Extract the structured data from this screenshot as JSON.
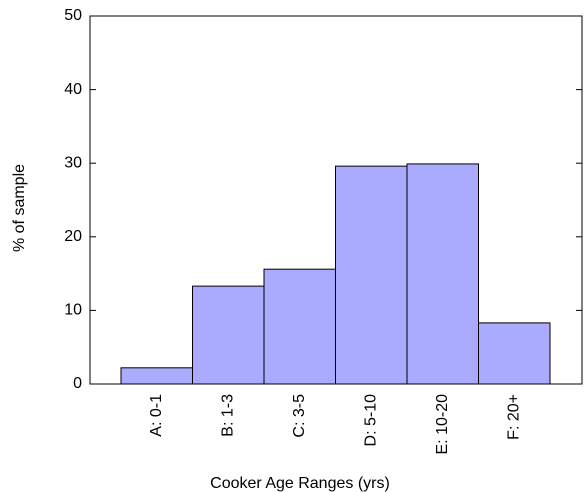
{
  "chart_data": {
    "type": "bar",
    "x_label": "Cooker Age Ranges (yrs)",
    "y_label": "% of sample",
    "categories": [
      "A: 0-1",
      "B: 1-3",
      "C: 3-5",
      "D: 5-10",
      "E: 10-20",
      "F: 20+"
    ],
    "values": [
      2.2,
      13.3,
      15.6,
      29.6,
      29.9,
      8.3
    ],
    "color": "#aaaaff",
    "ylim": [
      0,
      50
    ],
    "yticks": [
      0,
      10,
      20,
      30,
      40,
      50
    ],
    "grid": false
  }
}
